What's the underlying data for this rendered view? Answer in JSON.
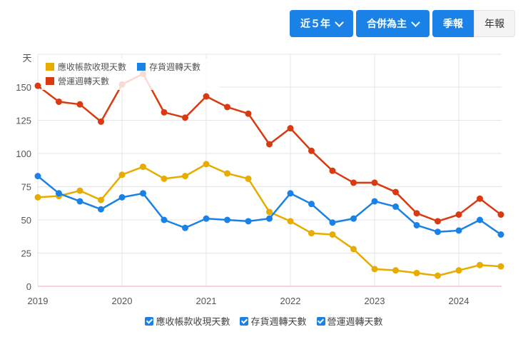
{
  "toolbar": {
    "range_label": "近５年",
    "basis_label": "合併為主",
    "quarterly_label": "季報",
    "annual_label": "年報"
  },
  "colors": {
    "accent": "#1a82e6",
    "receivable": "#e6ac00",
    "inventory": "#1a82e6",
    "operating": "#d93a11"
  },
  "legend_checkboxes": [
    {
      "label": "應收帳款收現天數",
      "checked": true
    },
    {
      "label": "存貨週轉天數",
      "checked": true
    },
    {
      "label": "營運週轉天數",
      "checked": true
    }
  ],
  "chart_data": {
    "type": "line",
    "title": "",
    "xlabel": "",
    "ylabel": "天",
    "ylim": [
      0,
      165
    ],
    "yticks": [
      0,
      25,
      50,
      75,
      100,
      125,
      150
    ],
    "xtick_labels": [
      "2019",
      "2020",
      "2021",
      "2022",
      "2023",
      "2024"
    ],
    "grid": true,
    "legend_position": "top-left",
    "x": [
      "2019Q1",
      "2019Q2",
      "2019Q3",
      "2019Q4",
      "2020Q1",
      "2020Q2",
      "2020Q3",
      "2020Q4",
      "2021Q1",
      "2021Q2",
      "2021Q3",
      "2021Q4",
      "2022Q1",
      "2022Q2",
      "2022Q3",
      "2022Q4",
      "2023Q1",
      "2023Q2",
      "2023Q3",
      "2023Q4",
      "2024Q1",
      "2024Q2",
      "2024Q3"
    ],
    "series": [
      {
        "name": "應收帳款收現天數",
        "color": "#e6ac00",
        "values": [
          67,
          68,
          72,
          65,
          84,
          90,
          81,
          83,
          92,
          85,
          81,
          56,
          49,
          40,
          39,
          28,
          13,
          12,
          10,
          8,
          12,
          16,
          15
        ]
      },
      {
        "name": "存貨週轉天數",
        "color": "#1a82e6",
        "values": [
          83,
          70,
          64,
          58,
          67,
          70,
          50,
          44,
          51,
          50,
          49,
          51,
          70,
          62,
          48,
          51,
          64,
          60,
          46,
          41,
          42,
          50,
          39
        ]
      },
      {
        "name": "營運週轉天數",
        "color": "#d93a11",
        "values": [
          151,
          139,
          137,
          124,
          152,
          160,
          131,
          127,
          143,
          135,
          130,
          107,
          119,
          102,
          87,
          78,
          78,
          71,
          55,
          49,
          54,
          66,
          54
        ]
      }
    ]
  }
}
